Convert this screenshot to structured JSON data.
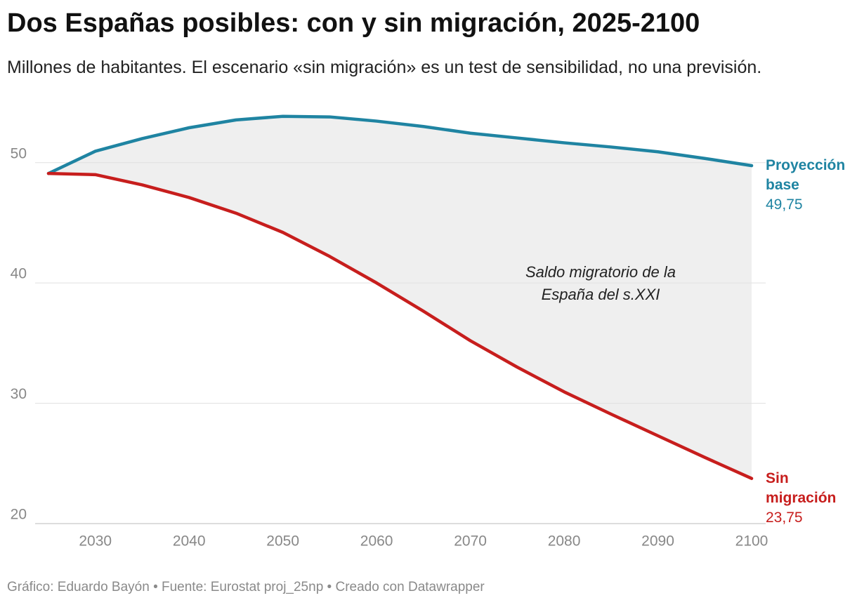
{
  "chart_data": {
    "type": "line",
    "title": "Dos Españas posibles: con y sin migración, 2025-2100",
    "subtitle": "Millones de habitantes. El escenario «sin migración» es un test de sensibilidad, no una previsión.",
    "annotation": "Saldo migratorio de la España del s.XXI",
    "footer": "Gráfico: Eduardo Bayón • Fuente: Eurostat proj_25np • Creado con Datawrapper",
    "x": [
      2025,
      2030,
      2035,
      2040,
      2045,
      2050,
      2055,
      2060,
      2065,
      2070,
      2075,
      2080,
      2085,
      2090,
      2095,
      2100
    ],
    "series": [
      {
        "name": "Proyección base",
        "color": "#1f84a2",
        "values": [
          49.1,
          50.95,
          52.0,
          52.9,
          53.55,
          53.85,
          53.8,
          53.45,
          53.0,
          52.45,
          52.05,
          51.65,
          51.3,
          50.9,
          50.35,
          49.75
        ],
        "value_labels": [
          null,
          null,
          null,
          null,
          null,
          null,
          null,
          null,
          null,
          null,
          null,
          null,
          null,
          null,
          null,
          "49,75"
        ]
      },
      {
        "name": "Sin migración",
        "color": "#c71e1d",
        "values": [
          49.1,
          49.0,
          48.15,
          47.1,
          45.8,
          44.2,
          42.2,
          40.0,
          37.65,
          35.2,
          33.0,
          30.95,
          29.1,
          27.3,
          25.5,
          23.75
        ],
        "value_labels": [
          null,
          null,
          null,
          null,
          null,
          null,
          null,
          null,
          null,
          null,
          null,
          null,
          null,
          null,
          null,
          "23,75"
        ]
      }
    ],
    "xlim": [
      2025,
      2100
    ],
    "xticks": [
      2030,
      2040,
      2050,
      2060,
      2070,
      2080,
      2090,
      2100
    ],
    "ylim": [
      20,
      55
    ],
    "yticks": [
      20,
      30,
      40,
      50
    ],
    "grid": true,
    "fill_between": true
  }
}
